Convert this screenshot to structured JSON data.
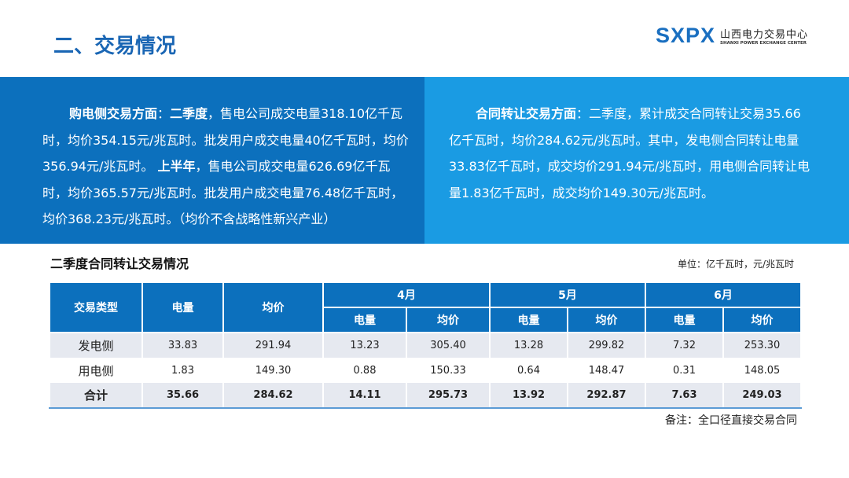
{
  "header": {
    "title": "二、交易情况",
    "logo_mark": "SXPX",
    "logo_cn": "山西电力交易中心",
    "logo_en": "SHANXI POWER EXCHANGE CENTER"
  },
  "left_panel": {
    "label": "购电侧交易方面",
    "sep": "：",
    "q2": "二季度",
    "text1": "，售电公司成交电量318.10亿千瓦时，均价354.15元/兆瓦时。批发用户成交电量40亿千瓦时，均价356.94元/兆瓦时。 ",
    "h1": "上半年",
    "text2": "，售电公司成交电量626.69亿千瓦时，均价365.57元/兆瓦时。批发用户成交电量76.48亿千瓦时，均价368.23元/兆瓦时。（均价不含战略性新兴产业）"
  },
  "right_panel": {
    "label": "合同转让交易方面",
    "text": "：二季度，累计成交合同转让交易35.66亿千瓦时，均价284.62元/兆瓦时。其中，发电侧合同转让电量33.83亿千瓦时，成交均价291.94元/兆瓦时，用电侧合同转让电量1.83亿千瓦时，成交均价149.30元/兆瓦时。"
  },
  "table": {
    "caption": "二季度合同转让交易情况",
    "unit": "单位：亿千瓦时，元/兆瓦时",
    "headers": {
      "type": "交易类型",
      "volume": "电量",
      "price": "均价",
      "months": [
        "4月",
        "5月",
        "6月"
      ]
    },
    "rows": [
      {
        "label": "发电侧",
        "values": [
          "33.83",
          "291.94",
          "13.23",
          "305.40",
          "13.28",
          "299.82",
          "7.32",
          "253.30"
        ]
      },
      {
        "label": "用电侧",
        "values": [
          "1.83",
          "149.30",
          "0.88",
          "150.33",
          "0.64",
          "148.47",
          "0.31",
          "148.05"
        ]
      },
      {
        "label": "合计",
        "values": [
          "35.66",
          "284.62",
          "14.11",
          "295.73",
          "13.92",
          "292.87",
          "7.63",
          "249.03"
        ]
      }
    ]
  },
  "note": "备注：全口径直接交易合同"
}
